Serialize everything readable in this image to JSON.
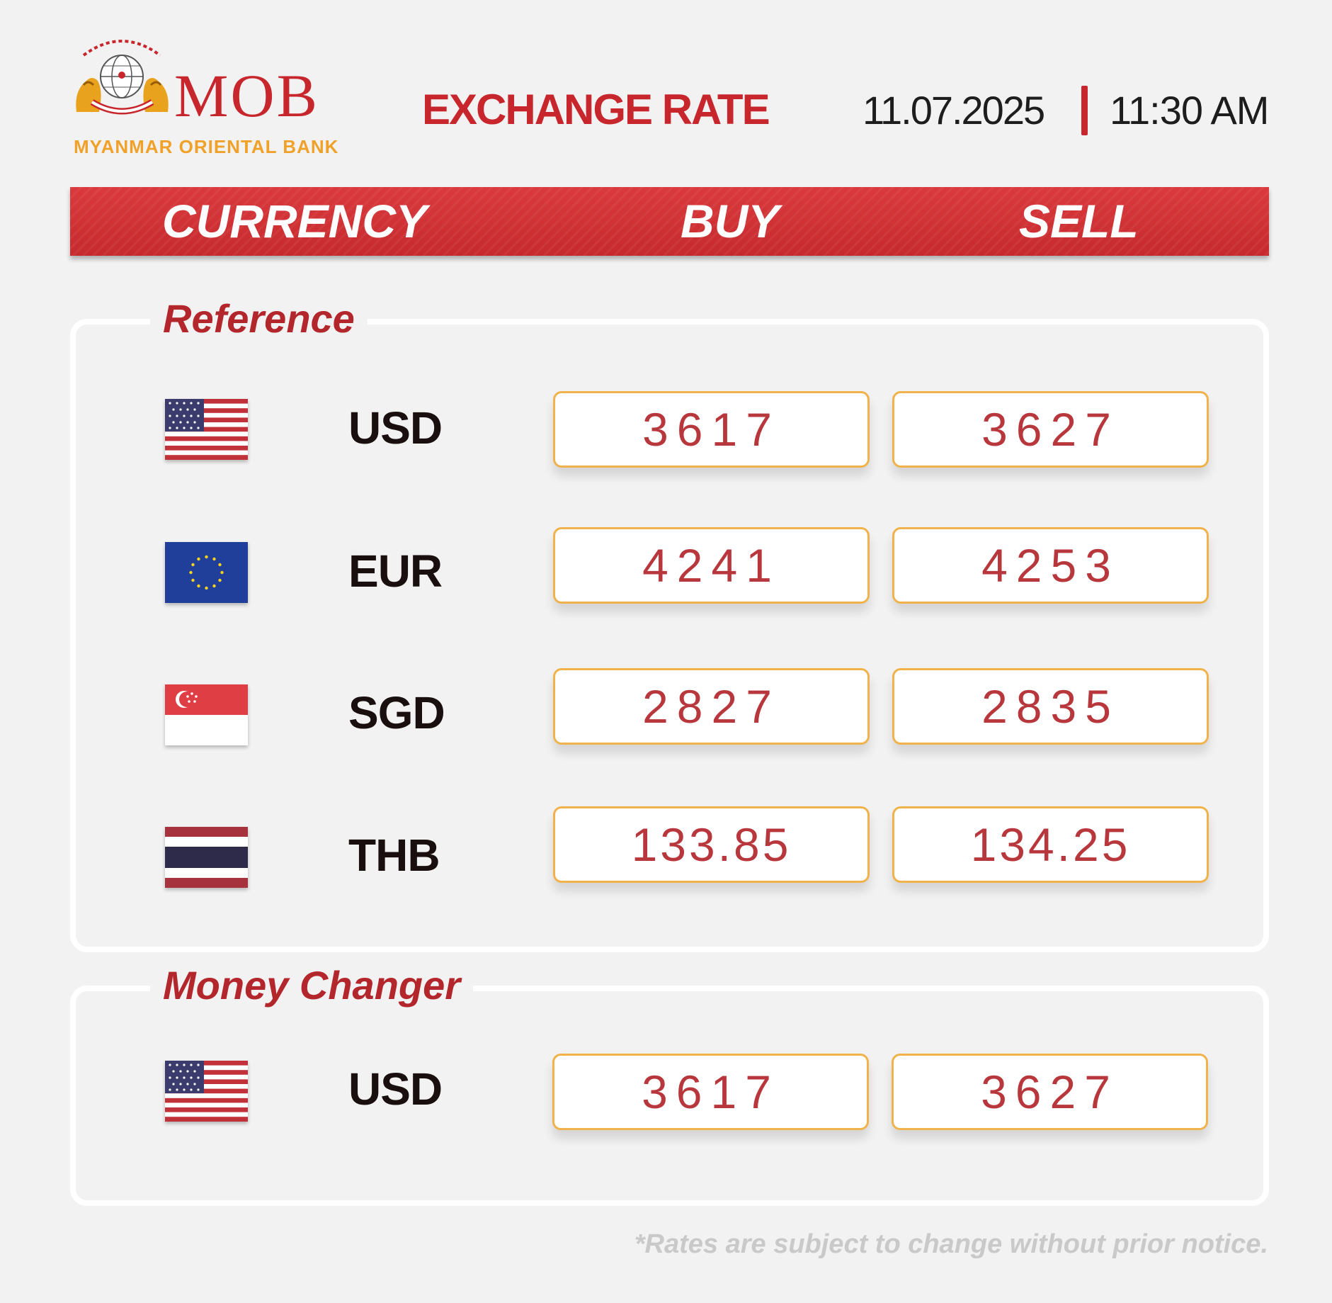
{
  "brand": {
    "abbreviation": "MOB",
    "bank_name": "MYANMAR ORIENTAL BANK",
    "colors": {
      "primary_red": "#c8262d",
      "gold": "#f0a12a",
      "box_border": "#f0b24a"
    }
  },
  "header": {
    "title": "EXCHANGE RATE",
    "date": "11.07.2025",
    "time": "11:30  AM"
  },
  "table_header": {
    "currency": "CURRENCY",
    "buy": "BUY",
    "sell": "SELL"
  },
  "reference": {
    "title": "Reference",
    "rows": [
      {
        "flag_icon": "us-flag-icon",
        "code": "USD",
        "buy": "3617",
        "sell": "3627"
      },
      {
        "flag_icon": "eu-flag-icon",
        "code": "EUR",
        "buy": "4241",
        "sell": "4253"
      },
      {
        "flag_icon": "sg-flag-icon",
        "code": "SGD",
        "buy": "2827",
        "sell": "2835"
      },
      {
        "flag_icon": "th-flag-icon",
        "code": "THB",
        "buy": "133.85",
        "sell": "134.25"
      }
    ]
  },
  "money_changer": {
    "title": "Money Changer",
    "rows": [
      {
        "flag_icon": "us-flag-icon",
        "code": "USD",
        "buy": "3617",
        "sell": "3627"
      }
    ]
  },
  "footnote": "*Rates are subject to change without prior notice."
}
